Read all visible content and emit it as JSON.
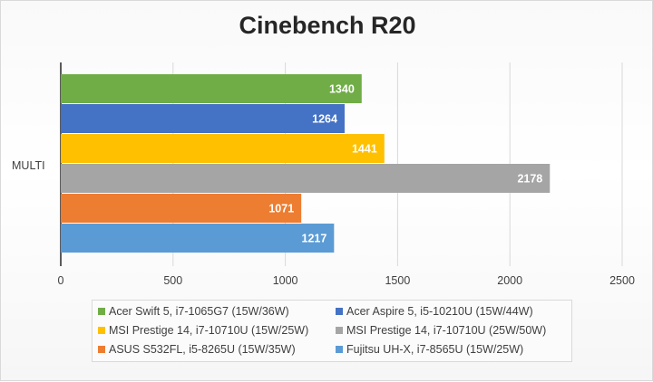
{
  "chart_data": {
    "type": "bar",
    "orientation": "horizontal",
    "title": "Cinebench R20",
    "categories": [
      "MULTI"
    ],
    "xlim": [
      0,
      2500
    ],
    "x_ticks": [
      "0",
      "500",
      "1000",
      "1500",
      "2000",
      "2500"
    ],
    "grid": "vertical",
    "legend_position": "bottom",
    "series": [
      {
        "name": "Acer Swift 5, i7-1065G7 (15W/36W)",
        "values": [
          1340
        ],
        "color": "#70ad47"
      },
      {
        "name": "Acer Aspire 5, i5-10210U (15W/44W)",
        "values": [
          1264
        ],
        "color": "#4472c4"
      },
      {
        "name": "MSI Prestige 14, i7-10710U (15W/25W)",
        "values": [
          1441
        ],
        "color": "#ffc000"
      },
      {
        "name": "MSI Prestige 14, i7-10710U (25W/50W)",
        "values": [
          2178
        ],
        "color": "#a5a5a5"
      },
      {
        "name": "ASUS S532FL, i5-8265U (15W/35W)",
        "values": [
          1071
        ],
        "color": "#ed7d31"
      },
      {
        "name": "Fujitsu UH-X, i7-8565U (15W/25W)",
        "values": [
          1217
        ],
        "color": "#5b9bd5"
      }
    ]
  }
}
